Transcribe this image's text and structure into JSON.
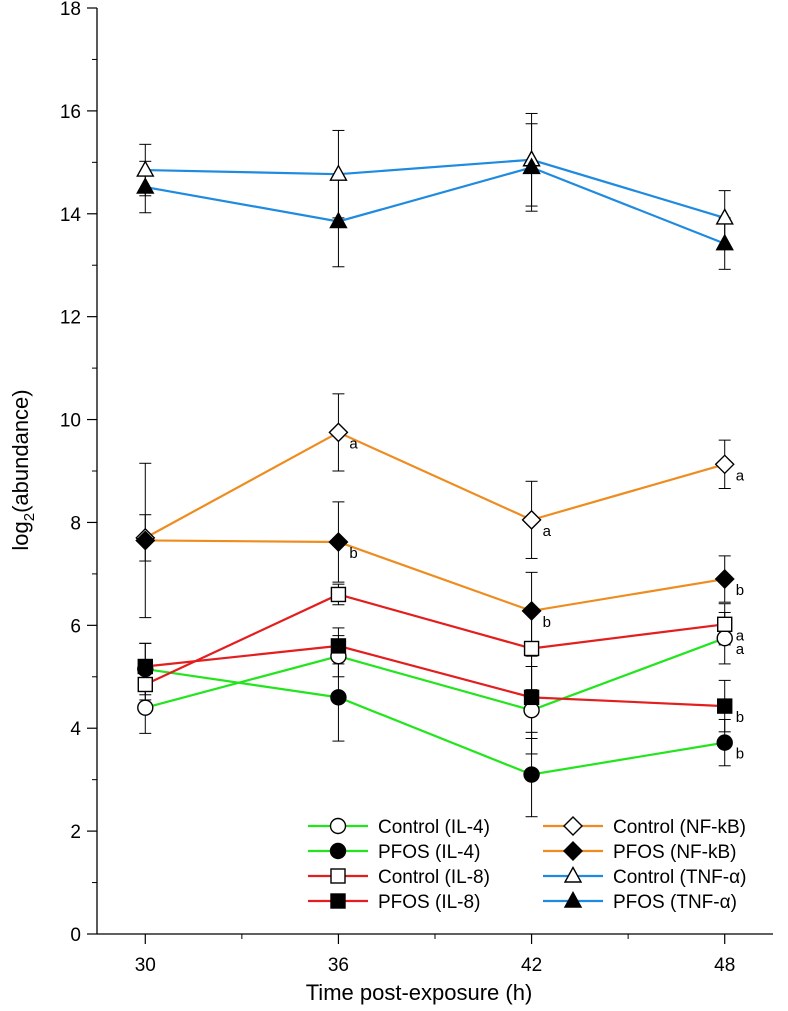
{
  "chart_data": {
    "type": "line",
    "title": "",
    "xlabel": "Time post-exposure (h)",
    "ylabel_main": "log",
    "ylabel_sub": "2",
    "ylabel_rest": "(abundance)",
    "x": [
      30,
      36,
      42,
      48
    ],
    "xlim": [
      28.5,
      49.5
    ],
    "ylim": [
      0,
      18
    ],
    "yticks": [
      0,
      2,
      4,
      6,
      8,
      10,
      12,
      14,
      16,
      18
    ],
    "xticks": [
      30,
      36,
      42,
      48
    ],
    "grid": false,
    "legend_position": "bottom-right",
    "colors": {
      "il4": "#22e51d",
      "il8": "#e31e1e",
      "nfkb": "#ee8c1f",
      "tnfa": "#1f8be0"
    },
    "series": [
      {
        "name": "Control (IL-4)",
        "color_key": "il4",
        "marker": "circle",
        "filled": false,
        "values": [
          4.4,
          5.4,
          4.35,
          5.75
        ],
        "err": [
          0.5,
          0.4,
          0.85,
          0.5
        ],
        "labels": [
          "",
          "",
          "",
          "a"
        ]
      },
      {
        "name": "PFOS (IL-4)",
        "color_key": "il4",
        "marker": "circle",
        "filled": true,
        "values": [
          5.15,
          4.6,
          3.1,
          3.72
        ],
        "err": [
          0.5,
          0.85,
          0.82,
          0.45
        ],
        "labels": [
          "",
          "",
          "",
          "b"
        ]
      },
      {
        "name": "Control (IL-8)",
        "color_key": "il8",
        "marker": "square",
        "filled": false,
        "values": [
          4.85,
          6.6,
          5.55,
          6.02
        ],
        "err": [
          0.3,
          0.2,
          0.8,
          0.4
        ],
        "labels": [
          "",
          "",
          "",
          "a"
        ]
      },
      {
        "name": "PFOS (IL-8)",
        "color_key": "il8",
        "marker": "square",
        "filled": true,
        "values": [
          5.2,
          5.6,
          4.6,
          4.43
        ],
        "err": [
          0.45,
          0.35,
          0.8,
          0.5
        ],
        "labels": [
          "",
          "",
          "",
          "b"
        ]
      },
      {
        "name": "Control (NF-kB)",
        "color_key": "nfkb",
        "marker": "diamond",
        "filled": false,
        "values": [
          7.7,
          9.75,
          8.05,
          9.13
        ],
        "err": [
          0.45,
          0.75,
          0.75,
          0.47
        ],
        "labels": [
          "",
          "a",
          "a",
          "a"
        ]
      },
      {
        "name": "PFOS (NF-kB)",
        "color_key": "nfkb",
        "marker": "diamond",
        "filled": true,
        "values": [
          7.65,
          7.62,
          6.28,
          6.9
        ],
        "err": [
          1.5,
          0.78,
          0.75,
          0.45
        ],
        "labels": [
          "",
          "b",
          "b",
          "b"
        ]
      },
      {
        "name": "Control (TNF-α)",
        "color_key": "tnfa",
        "marker": "triangle",
        "filled": false,
        "values": [
          14.85,
          14.77,
          15.05,
          13.92
        ],
        "err": [
          0.5,
          0.85,
          0.9,
          0.53
        ],
        "labels": [
          "",
          "",
          "",
          ""
        ]
      },
      {
        "name": "PFOS (TNF-α)",
        "color_key": "tnfa",
        "marker": "triangle",
        "filled": true,
        "values": [
          14.52,
          13.85,
          14.9,
          13.42
        ],
        "err": [
          0.5,
          0.88,
          0.85,
          0.5
        ],
        "labels": [
          "",
          "",
          "",
          ""
        ]
      }
    ]
  }
}
